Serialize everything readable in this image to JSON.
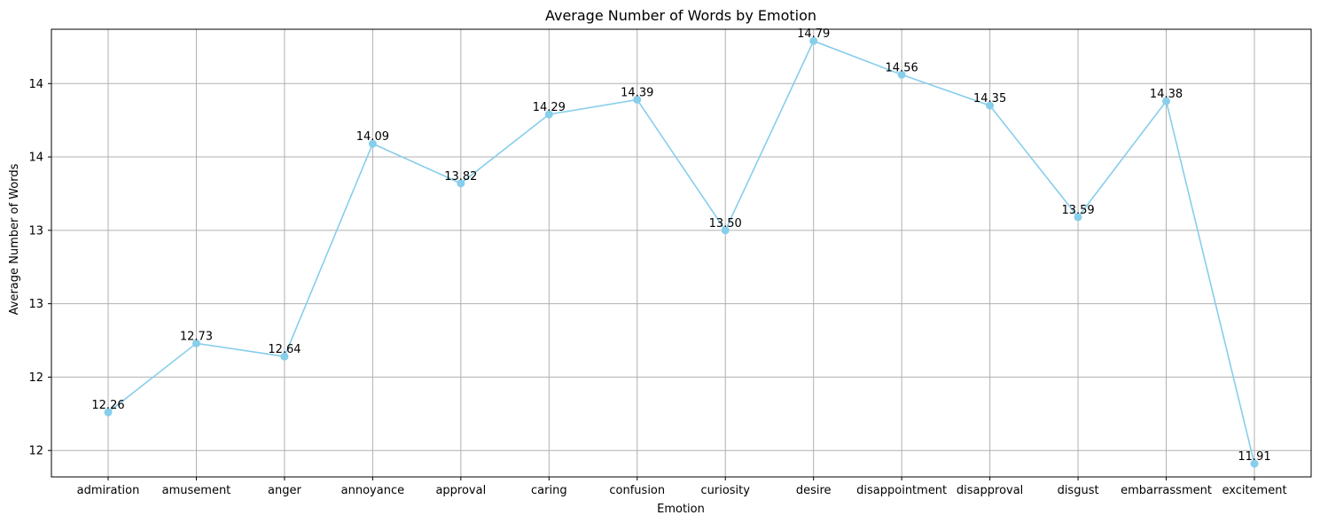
{
  "chart_data": {
    "type": "line",
    "title": "Average Number of Words by Emotion",
    "xlabel": "Emotion",
    "ylabel": "Average Number of Words",
    "categories": [
      "admiration",
      "amusement",
      "anger",
      "annoyance",
      "approval",
      "caring",
      "confusion",
      "curiosity",
      "desire",
      "disappointment",
      "disapproval",
      "disgust",
      "embarrassment",
      "excitement"
    ],
    "values": [
      12.26,
      12.73,
      12.64,
      14.09,
      13.82,
      14.29,
      14.39,
      13.5,
      14.79,
      14.56,
      14.35,
      13.59,
      14.38,
      11.91
    ],
    "value_labels": [
      "12.26",
      "12.73",
      "12.64",
      "14.09",
      "13.82",
      "14.29",
      "14.39",
      "13.50",
      "14.79",
      "14.56",
      "14.35",
      "13.59",
      "14.38",
      "11.91"
    ],
    "y_ticks": [
      12.0,
      12.5,
      13.0,
      13.5,
      14.0,
      14.5
    ],
    "y_tick_labels": [
      "12",
      "12",
      "13",
      "13",
      "14",
      "14"
    ],
    "ylim": [
      11.82,
      14.87
    ],
    "grid": true,
    "color": "#87ceeb"
  }
}
